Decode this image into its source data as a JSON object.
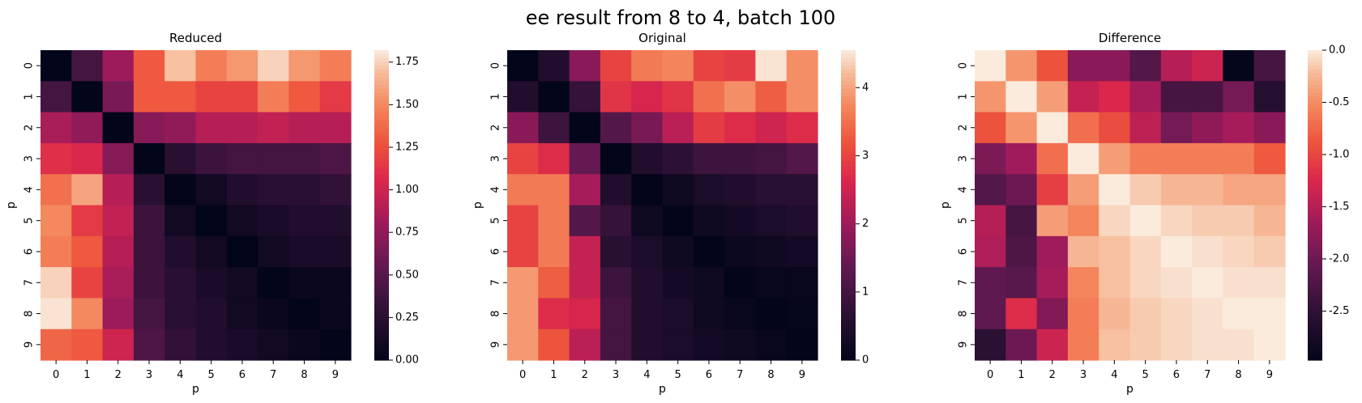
{
  "suptitle": "ee result from 8 to 4, batch 100",
  "chart_data": [
    {
      "type": "heatmap",
      "title": "Reduced",
      "xlabel": "p",
      "ylabel": "p",
      "x_categories": [
        "0",
        "1",
        "2",
        "3",
        "4",
        "5",
        "6",
        "7",
        "8",
        "9"
      ],
      "y_categories": [
        "0",
        "1",
        "2",
        "3",
        "4",
        "5",
        "6",
        "7",
        "8",
        "9"
      ],
      "vmin": 0.0,
      "vmax": 1.82,
      "colorbar_ticks": [
        "0.00",
        "0.25",
        "0.50",
        "0.75",
        "1.00",
        "1.25",
        "1.50",
        "1.75"
      ],
      "values": [
        [
          0.0,
          0.4,
          0.8,
          1.3,
          1.7,
          1.45,
          1.55,
          1.75,
          1.55,
          1.45
        ],
        [
          0.4,
          0.0,
          0.65,
          1.3,
          1.3,
          1.2,
          1.2,
          1.45,
          1.3,
          1.15
        ],
        [
          0.85,
          0.75,
          0.0,
          0.7,
          0.75,
          0.9,
          0.9,
          0.95,
          0.9,
          0.9
        ],
        [
          1.1,
          1.05,
          0.7,
          0.0,
          0.25,
          0.35,
          0.4,
          0.4,
          0.4,
          0.45
        ],
        [
          1.4,
          1.6,
          0.9,
          0.25,
          0.0,
          0.1,
          0.2,
          0.25,
          0.25,
          0.3
        ],
        [
          1.5,
          1.15,
          0.95,
          0.35,
          0.1,
          0.0,
          0.1,
          0.15,
          0.2,
          0.2
        ],
        [
          1.45,
          1.3,
          0.9,
          0.35,
          0.2,
          0.1,
          0.0,
          0.1,
          0.15,
          0.15
        ],
        [
          1.75,
          1.2,
          0.85,
          0.35,
          0.25,
          0.15,
          0.1,
          0.0,
          0.05,
          0.05
        ],
        [
          1.8,
          1.5,
          0.8,
          0.4,
          0.25,
          0.2,
          0.1,
          0.05,
          0.0,
          0.05
        ],
        [
          1.35,
          1.3,
          1.0,
          0.45,
          0.3,
          0.2,
          0.15,
          0.1,
          0.05,
          0.0
        ]
      ]
    },
    {
      "type": "heatmap",
      "title": "Original",
      "xlabel": "p",
      "ylabel": "p",
      "x_categories": [
        "0",
        "1",
        "2",
        "3",
        "4",
        "5",
        "6",
        "7",
        "8",
        "9"
      ],
      "y_categories": [
        "0",
        "1",
        "2",
        "3",
        "4",
        "5",
        "6",
        "7",
        "8",
        "9"
      ],
      "vmin": 0,
      "vmax": 4.55,
      "colorbar_ticks": [
        "0",
        "1",
        "2",
        "3",
        "4"
      ],
      "values": [
        [
          0.0,
          0.5,
          1.8,
          3.0,
          3.6,
          3.7,
          3.0,
          2.9,
          4.5,
          3.8
        ],
        [
          0.5,
          0.0,
          0.8,
          2.8,
          2.6,
          2.8,
          3.5,
          3.8,
          3.3,
          3.8
        ],
        [
          1.8,
          0.9,
          0.0,
          1.2,
          1.6,
          2.3,
          2.9,
          2.7,
          2.5,
          2.7
        ],
        [
          3.0,
          2.7,
          1.4,
          0.0,
          0.5,
          0.7,
          0.9,
          0.9,
          1.0,
          1.2
        ],
        [
          3.6,
          3.6,
          2.1,
          0.5,
          0.0,
          0.2,
          0.4,
          0.5,
          0.6,
          0.6
        ],
        [
          3.0,
          3.6,
          1.2,
          0.8,
          0.2,
          0.0,
          0.2,
          0.3,
          0.4,
          0.5
        ],
        [
          3.0,
          3.6,
          2.4,
          0.6,
          0.4,
          0.2,
          0.0,
          0.15,
          0.2,
          0.3
        ],
        [
          3.9,
          3.3,
          2.4,
          0.9,
          0.5,
          0.3,
          0.2,
          0.0,
          0.1,
          0.1
        ],
        [
          3.9,
          2.7,
          2.6,
          1.0,
          0.5,
          0.4,
          0.2,
          0.1,
          0.0,
          0.05
        ],
        [
          3.9,
          3.2,
          2.3,
          1.0,
          0.5,
          0.4,
          0.3,
          0.2,
          0.1,
          0.0
        ]
      ]
    },
    {
      "type": "heatmap",
      "title": "Difference",
      "xlabel": "p",
      "ylabel": "p",
      "x_categories": [
        "0",
        "1",
        "2",
        "3",
        "4",
        "5",
        "6",
        "7",
        "8",
        "9"
      ],
      "y_categories": [
        "0",
        "1",
        "2",
        "3",
        "4",
        "5",
        "6",
        "7",
        "8",
        "9"
      ],
      "vmin": -2.97,
      "vmax": 0.0,
      "colorbar_ticks": [
        "0.0",
        "-0.5",
        "-1.0",
        "-1.5",
        "-2.0",
        "-2.5"
      ],
      "values": [
        [
          0.0,
          -0.45,
          -0.9,
          -1.8,
          -1.8,
          -2.2,
          -1.5,
          -1.35,
          -2.95,
          -2.3
        ],
        [
          -0.45,
          0.0,
          -0.4,
          -1.4,
          -1.25,
          -1.6,
          -2.3,
          -2.3,
          -1.95,
          -2.6
        ],
        [
          -0.9,
          -0.45,
          0.0,
          -0.7,
          -0.95,
          -1.45,
          -1.95,
          -1.75,
          -1.6,
          -1.8
        ],
        [
          -1.9,
          -1.65,
          -0.7,
          0.0,
          -0.4,
          -0.6,
          -0.6,
          -0.6,
          -0.6,
          -0.85
        ],
        [
          -2.2,
          -2.0,
          -1.05,
          -0.4,
          0.0,
          -0.15,
          -0.25,
          -0.25,
          -0.35,
          -0.35
        ],
        [
          -1.5,
          -2.3,
          -0.4,
          -0.55,
          -0.1,
          0.0,
          -0.1,
          -0.15,
          -0.15,
          -0.25
        ],
        [
          -1.55,
          -2.25,
          -1.65,
          -0.25,
          -0.2,
          -0.1,
          0.0,
          -0.05,
          -0.1,
          -0.15
        ],
        [
          -2.1,
          -2.15,
          -1.6,
          -0.55,
          -0.2,
          -0.1,
          -0.05,
          0.0,
          -0.05,
          -0.05
        ],
        [
          -2.1,
          -1.2,
          -1.85,
          -0.6,
          -0.25,
          -0.15,
          -0.1,
          -0.05,
          0.0,
          0.0
        ],
        [
          -2.55,
          -2.0,
          -1.35,
          -0.6,
          -0.2,
          -0.15,
          -0.1,
          -0.05,
          -0.05,
          0.0
        ]
      ]
    }
  ]
}
